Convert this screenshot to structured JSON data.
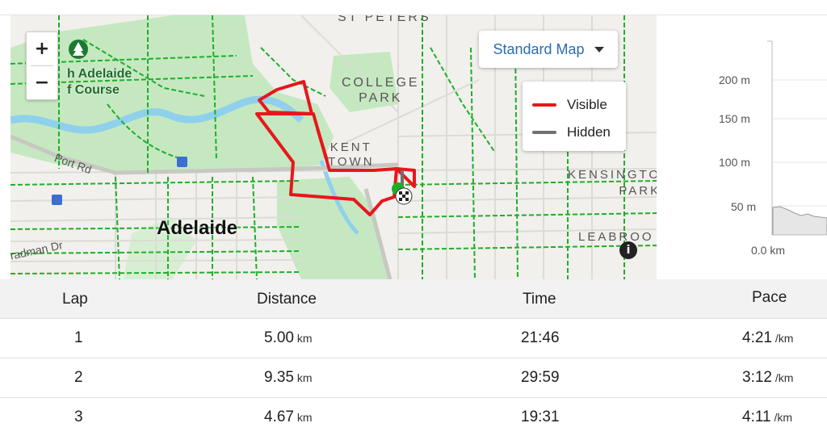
{
  "map": {
    "zoom_in_label": "+",
    "zoom_out_label": "−",
    "style_selector_label": "Standard Map",
    "legend": [
      {
        "label": "Visible",
        "color": "#e8161c"
      },
      {
        "label": "Hidden",
        "color": "#707070"
      }
    ],
    "labels": {
      "north_adelaide_golf": [
        "h Adelaide",
        "f Course"
      ],
      "st_peters": "ST PETERS",
      "college_park": [
        "COLLEGE",
        "PARK"
      ],
      "kent_town": [
        "KENT",
        "TOWN"
      ],
      "kensington_park": [
        "KENSINGTO",
        "PARK"
      ],
      "port_rd": "Port Rd",
      "adelaide": "Adelaide",
      "dman_dr": "radman Dr",
      "leabrook": "LEABROO",
      "info": "i"
    },
    "route_color": "#e8161c",
    "park_color": "#c5e8c1",
    "water_color": "#8fd0ec",
    "path_color": "#1fae2a"
  },
  "elevation": {
    "y_ticks": [
      "200 m",
      "150 m",
      "100 m",
      "50 m"
    ],
    "x_start": "0.0 km"
  },
  "laps": {
    "headers": {
      "lap": "Lap",
      "distance": "Distance",
      "time": "Time",
      "pace": "Pace"
    },
    "rows": [
      {
        "lap": "1",
        "distance": "5.00",
        "distance_unit": "km",
        "time": "21:46",
        "pace": "4:21",
        "pace_unit": "/km"
      },
      {
        "lap": "2",
        "distance": "9.35",
        "distance_unit": "km",
        "time": "29:59",
        "pace": "3:12",
        "pace_unit": "/km"
      },
      {
        "lap": "3",
        "distance": "4.67",
        "distance_unit": "km",
        "time": "19:31",
        "pace": "4:11",
        "pace_unit": "/km"
      }
    ]
  }
}
